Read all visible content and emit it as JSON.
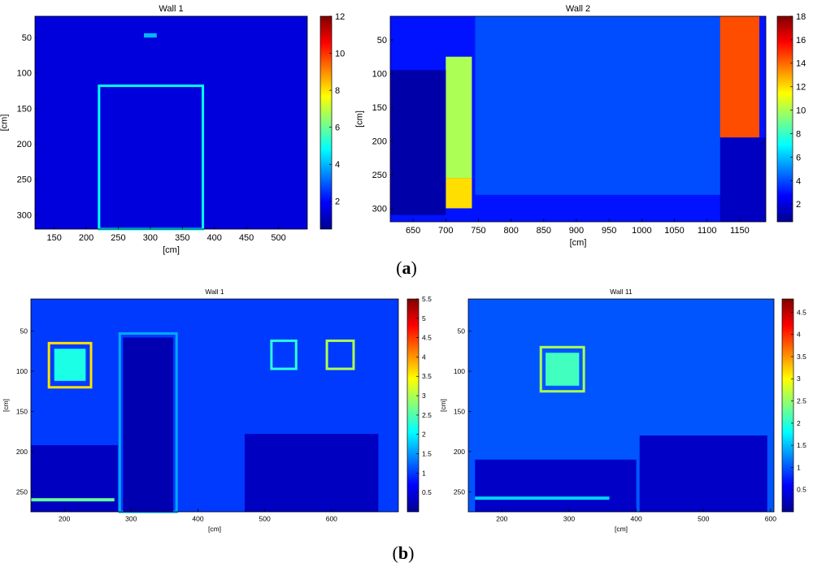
{
  "panel_labels": [
    {
      "open": "(",
      "letter": "a",
      "close": ")"
    },
    {
      "open": "(",
      "letter": "b",
      "close": ")"
    }
  ],
  "colormap": [
    "#00008f",
    "#0000ff",
    "#0080ff",
    "#00ffff",
    "#80ff80",
    "#ffff00",
    "#ff8000",
    "#ff0000",
    "#800000"
  ],
  "chart_data": [
    {
      "type": "heatmap",
      "title": "Wall 1",
      "xlabel": "[cm]",
      "ylabel": "[cm]",
      "xlim": [
        120,
        545
      ],
      "ylim": [
        320,
        20
      ],
      "x_ticks": [
        150,
        200,
        250,
        300,
        350,
        400,
        450,
        500
      ],
      "y_ticks": [
        50,
        100,
        150,
        200,
        250,
        300
      ],
      "colorbar": {
        "min": 0.5,
        "max": 12,
        "ticks": [
          2,
          4,
          6,
          8,
          10,
          12
        ]
      },
      "background_value": 1.5,
      "features": [
        {
          "kind": "rect-outline",
          "x": [
            220,
            382
          ],
          "y": [
            118,
            320
          ],
          "value": 4.8
        },
        {
          "kind": "rect-fill",
          "x": [
            290,
            310
          ],
          "y": [
            44,
            50
          ],
          "value": 4
        }
      ]
    },
    {
      "type": "heatmap",
      "title": "Wall 2",
      "xlabel": "[cm]",
      "ylabel": "[cm]",
      "xlim": [
        615,
        1190
      ],
      "ylim": [
        320,
        15
      ],
      "x_ticks": [
        650,
        700,
        750,
        800,
        850,
        900,
        950,
        1000,
        1050,
        1100,
        1150
      ],
      "y_ticks": [
        50,
        100,
        150,
        200,
        250,
        300
      ],
      "colorbar": {
        "min": 0.5,
        "max": 18,
        "ticks": [
          2,
          4,
          6,
          8,
          10,
          12,
          14,
          16,
          18
        ]
      },
      "background_value": 3,
      "features": [
        {
          "kind": "rect-fill",
          "x": [
            745,
            1125
          ],
          "y": [
            15,
            280
          ],
          "value": 4
        },
        {
          "kind": "rect-fill",
          "x": [
            700,
            740
          ],
          "y": [
            75,
            255
          ],
          "value": 10
        },
        {
          "kind": "rect-fill",
          "x": [
            700,
            740
          ],
          "y": [
            255,
            300
          ],
          "value": 12
        },
        {
          "kind": "rect-fill",
          "x": [
            1120,
            1180
          ],
          "y": [
            15,
            195
          ],
          "value": 14.5
        },
        {
          "kind": "rect-fill",
          "x": [
            615,
            700
          ],
          "y": [
            95,
            310
          ],
          "value": 1
        },
        {
          "kind": "rect-fill",
          "x": [
            1120,
            1190
          ],
          "y": [
            195,
            320
          ],
          "value": 1.5
        }
      ]
    },
    {
      "type": "heatmap",
      "title": "Wall 1",
      "xlabel": "[cm]",
      "ylabel": "[cm]",
      "xlim": [
        150,
        700
      ],
      "ylim": [
        275,
        10
      ],
      "x_ticks": [
        200,
        300,
        400,
        500,
        600
      ],
      "y_ticks": [
        50,
        100,
        150,
        200,
        250
      ],
      "colorbar": {
        "min": 0,
        "max": 5.5,
        "ticks": [
          0.5,
          1,
          1.5,
          2,
          2.5,
          3,
          3.5,
          4,
          4.5,
          5,
          5.5
        ]
      },
      "background_value": 1,
      "features": [
        {
          "kind": "rect-outline",
          "x": [
            177,
            240
          ],
          "y": [
            65,
            120
          ],
          "value": 3.6
        },
        {
          "kind": "rect-fill",
          "x": [
            185,
            232
          ],
          "y": [
            72,
            112
          ],
          "value": 2.2
        },
        {
          "kind": "rect-outline",
          "x": [
            510,
            547
          ],
          "y": [
            62,
            97
          ],
          "value": 2.3
        },
        {
          "kind": "rect-outline",
          "x": [
            593,
            633
          ],
          "y": [
            62,
            97
          ],
          "value": 3
        },
        {
          "kind": "rect-outline",
          "x": [
            283,
            368
          ],
          "y": [
            53,
            275
          ],
          "value": 1.6
        },
        {
          "kind": "rect-fill",
          "x": [
            288,
            363
          ],
          "y": [
            58,
            275
          ],
          "value": 0.2
        },
        {
          "kind": "rect-fill",
          "x": [
            150,
            280
          ],
          "y": [
            192,
            275
          ],
          "value": 0.3
        },
        {
          "kind": "rect-fill",
          "x": [
            470,
            670
          ],
          "y": [
            178,
            275
          ],
          "value": 0.3
        },
        {
          "kind": "rect-fill",
          "x": [
            150,
            275
          ],
          "y": [
            258,
            262
          ],
          "value": 2.6
        }
      ]
    },
    {
      "type": "heatmap",
      "title": "Wall 11",
      "xlabel": "[cm]",
      "ylabel": "[cm]",
      "xlim": [
        150,
        605
      ],
      "ylim": [
        275,
        10
      ],
      "x_ticks": [
        200,
        300,
        400,
        500,
        600
      ],
      "y_ticks": [
        50,
        100,
        150,
        200,
        250
      ],
      "colorbar": {
        "min": 0,
        "max": 4.8,
        "ticks": [
          0.5,
          1,
          1.5,
          2,
          2.5,
          3,
          3.5,
          4,
          4.5
        ]
      },
      "background_value": 1,
      "features": [
        {
          "kind": "rect-outline",
          "x": [
            258,
            322
          ],
          "y": [
            70,
            125
          ],
          "value": 2.6
        },
        {
          "kind": "rect-fill",
          "x": [
            265,
            315
          ],
          "y": [
            77,
            118
          ],
          "value": 2.1
        },
        {
          "kind": "rect-fill",
          "x": [
            160,
            400
          ],
          "y": [
            210,
            275
          ],
          "value": 0.3
        },
        {
          "kind": "rect-fill",
          "x": [
            405,
            595
          ],
          "y": [
            180,
            275
          ],
          "value": 0.3
        },
        {
          "kind": "rect-fill",
          "x": [
            160,
            360
          ],
          "y": [
            256,
            260
          ],
          "value": 1.6
        }
      ]
    }
  ]
}
